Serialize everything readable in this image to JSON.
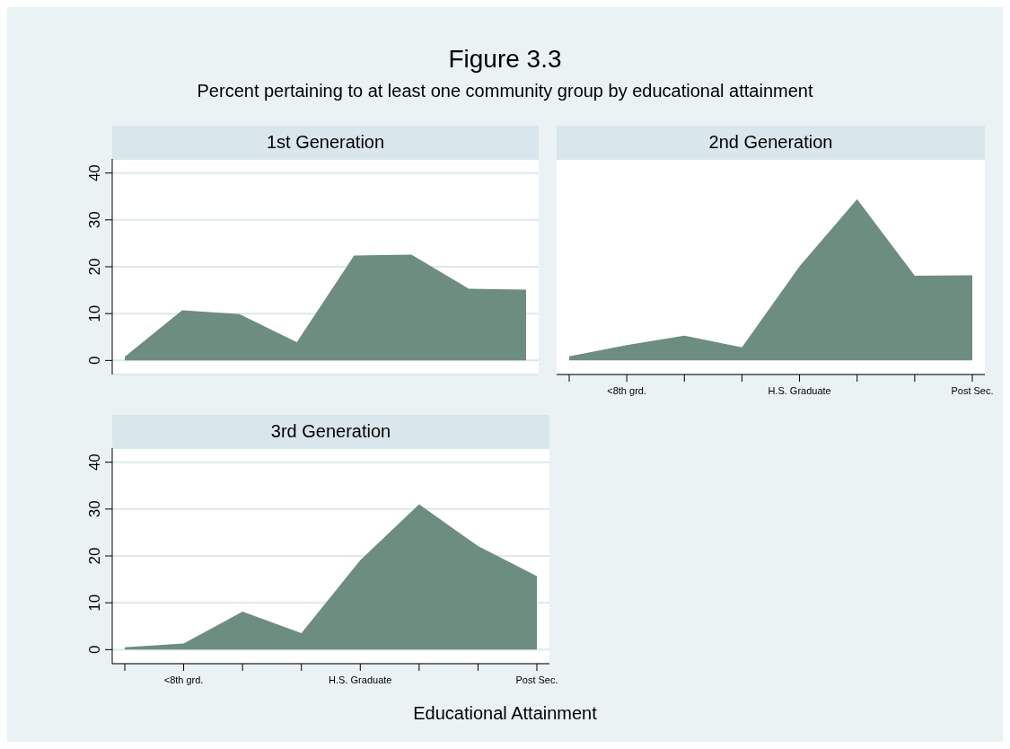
{
  "chart_data": [
    {
      "type": "area",
      "title": "1st Generation",
      "annotations": [
        "Figure 3.3",
        "Percent pertaining to at least one community group by educational attainment"
      ],
      "categories": [
        null,
        null,
        null,
        null,
        null,
        null,
        null,
        null
      ],
      "values": [
        0.8,
        10.7,
        9.9,
        3.9,
        22.4,
        22.6,
        15.3,
        15.1
      ],
      "color": "#6d8d80",
      "ylim": [
        -3,
        43
      ],
      "yticks": [
        0,
        10,
        20,
        30,
        40
      ],
      "grid": "y",
      "tick_labels": "y"
    },
    {
      "type": "area",
      "title": "2nd Generation",
      "categories": [
        null,
        "<8th grd.",
        null,
        null,
        "H.S. Graduate",
        null,
        null,
        "Post Sec."
      ],
      "values": [
        0.9,
        3.3,
        5.3,
        2.8,
        20.1,
        34.4,
        18.1,
        18.2
      ],
      "color": "#6d8d80",
      "ylim": [
        -3,
        43
      ],
      "grid": "y",
      "tick_labels": "x"
    },
    {
      "type": "area",
      "title": "3rd Generation",
      "xlabel": "Educational Attainment",
      "categories": [
        null,
        "<8th grd.",
        null,
        null,
        "H.S. Graduate",
        null,
        null,
        "Post Sec."
      ],
      "values": [
        0.5,
        1.3,
        8.1,
        3.5,
        19.1,
        31.0,
        22.1,
        15.7
      ],
      "color": "#6d8d80",
      "ylim": [
        -3,
        43
      ],
      "yticks": [
        0,
        10,
        20,
        30,
        40
      ],
      "grid": "y"
    }
  ]
}
